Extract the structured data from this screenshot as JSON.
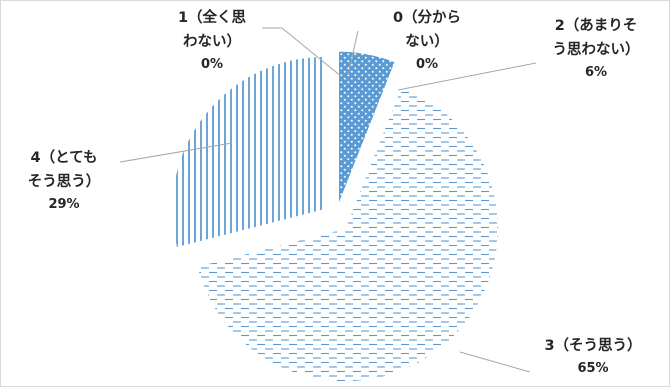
{
  "chart_data": {
    "type": "pie",
    "categories": [
      "0（分からない）",
      "2（あまりそう思わない）",
      "3（そう思う）",
      "4（とてもそう思う）",
      "1（全く思わない）"
    ],
    "values": [
      0,
      6,
      65,
      29,
      0
    ],
    "percent_labels": [
      "0%",
      "6%",
      "65%",
      "29%",
      "0%"
    ],
    "label_lines": [
      [
        "0（分から",
        "ない）"
      ],
      [
        "2（あまりそ",
        "う思わない）"
      ],
      [
        "3（そう思う）"
      ],
      [
        "4（とても",
        "そう思う）"
      ],
      [
        "1（全く思",
        "わない）"
      ]
    ],
    "exploded": true,
    "legend": "none",
    "colors": {
      "dotted_fill": "#5b9bd5",
      "pattern_stroke": "#5b9bd5",
      "leader_line": "#a6a6a6",
      "label_text": "#262626"
    },
    "patterns": [
      "dots",
      "dots",
      "dashed-horizontal",
      "vertical-lines",
      "dots"
    ]
  }
}
